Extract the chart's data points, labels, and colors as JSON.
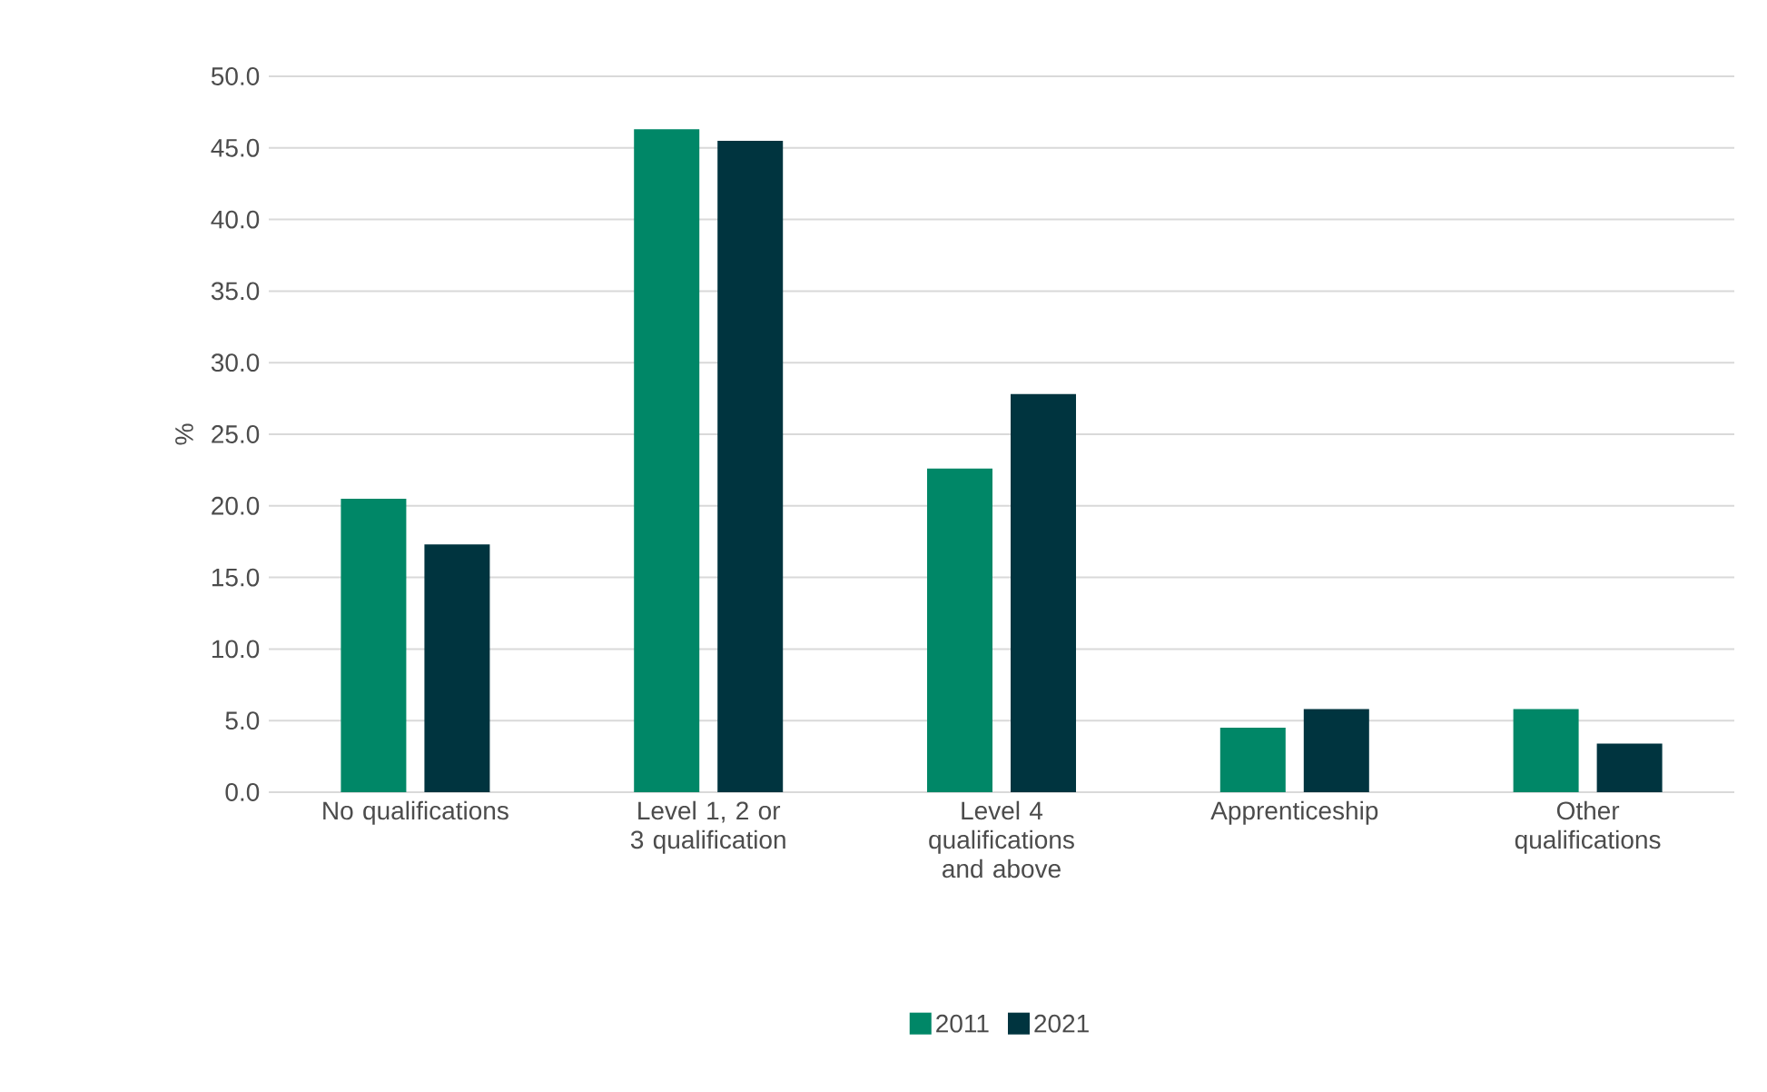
{
  "chart_data": {
    "type": "bar",
    "ylabel": "%",
    "categories": [
      "No qualifications",
      "Level 1, 2 or 3 qualification",
      "Level 4 qualifications and above",
      "Apprenticeship",
      "Other qualifications"
    ],
    "series": [
      {
        "name": "2011",
        "color": "#008767",
        "values": [
          20.5,
          46.3,
          22.6,
          4.5,
          5.8
        ]
      },
      {
        "name": "2021",
        "color": "#00343f",
        "values": [
          17.3,
          45.5,
          27.8,
          5.8,
          3.4
        ]
      }
    ],
    "ylim": [
      0,
      50
    ],
    "yticks": [
      {
        "value": 0,
        "label": "0.0"
      },
      {
        "value": 5,
        "label": "5.0"
      },
      {
        "value": 10,
        "label": "10.0"
      },
      {
        "value": 15,
        "label": "15.0"
      },
      {
        "value": 20,
        "label": "20.0"
      },
      {
        "value": 25,
        "label": "25.0"
      },
      {
        "value": 30,
        "label": "30.0"
      },
      {
        "value": 35,
        "label": "35.0"
      },
      {
        "value": 40,
        "label": "40.0"
      },
      {
        "value": 45,
        "label": "45.0"
      },
      {
        "value": 50,
        "label": "50.0"
      }
    ],
    "grid": "y",
    "legend": "bottom"
  }
}
